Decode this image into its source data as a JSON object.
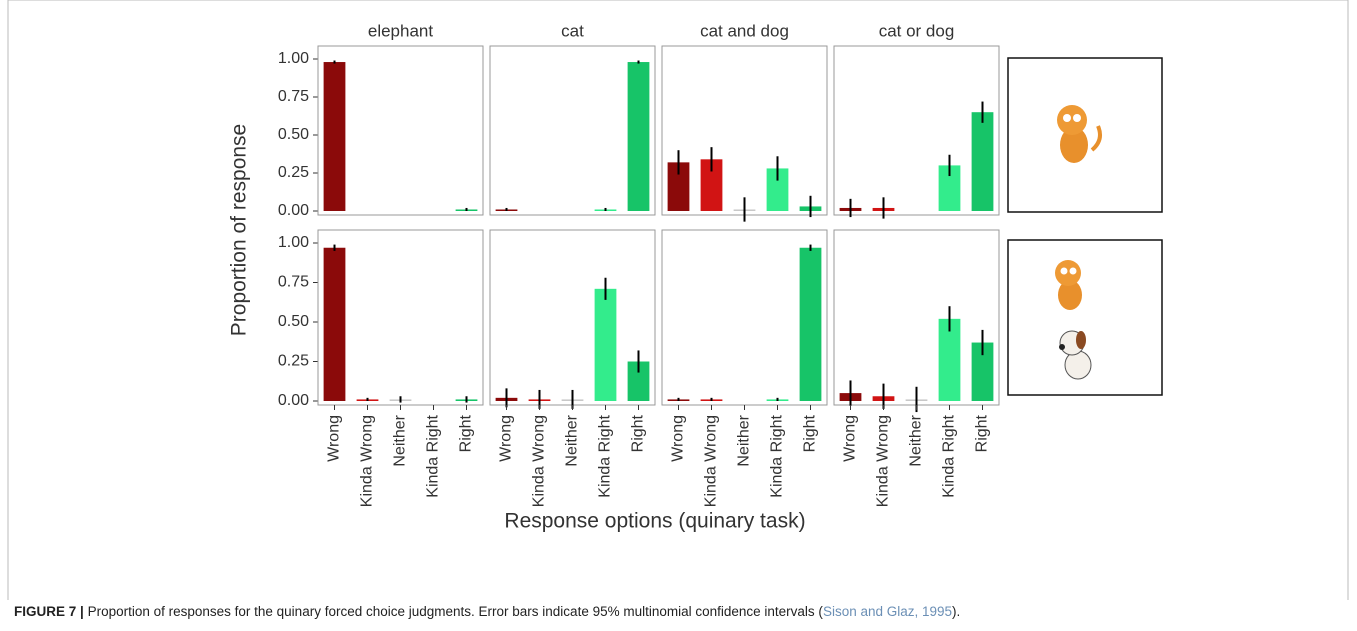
{
  "chart_data": {
    "type": "bar",
    "facets": [
      "elephant",
      "cat",
      "cat and dog",
      "cat or dog"
    ],
    "categories": [
      "Wrong",
      "Kinda Wrong",
      "Neither",
      "Kinda Right",
      "Right"
    ],
    "colors": [
      "#8b0a0a",
      "#d11414",
      "#c8c8c8",
      "#33ec8c",
      "#17c468"
    ],
    "ylim": [
      0,
      1
    ],
    "yticks": [
      {
        "value": 0,
        "label": "0.00"
      },
      {
        "value": 0.25,
        "label": "0.25"
      },
      {
        "value": 0.5,
        "label": "0.50"
      },
      {
        "value": 0.75,
        "label": "0.75"
      },
      {
        "value": 1,
        "label": "1.00"
      }
    ],
    "y_label": "Proportion of response",
    "x_label": "Response options (quinary task)",
    "rows": [
      {
        "panels": [
          {
            "values": [
              0.98,
              0,
              0,
              0,
              0.01
            ],
            "errors": [
              0.01,
              0,
              0,
              0,
              0.01
            ]
          },
          {
            "values": [
              0.01,
              0,
              0,
              0.01,
              0.98
            ],
            "errors": [
              0.01,
              0,
              0,
              0.01,
              0.01
            ]
          },
          {
            "values": [
              0.32,
              0.34,
              0.01,
              0.28,
              0.03
            ],
            "errors": [
              0.08,
              0.08,
              0.08,
              0.08,
              0.07
            ]
          },
          {
            "values": [
              0.02,
              0.02,
              0,
              0.3,
              0.65
            ],
            "errors": [
              0.06,
              0.07,
              0,
              0.07,
              0.07
            ]
          }
        ]
      },
      {
        "panels": [
          {
            "values": [
              0.97,
              0.01,
              0.01,
              0,
              0.01
            ],
            "errors": [
              0.02,
              0.01,
              0.02,
              0,
              0.02
            ]
          },
          {
            "values": [
              0.02,
              0.01,
              0.01,
              0.71,
              0.25
            ],
            "errors": [
              0.06,
              0.06,
              0.06,
              0.07,
              0.07
            ]
          },
          {
            "values": [
              0.01,
              0.01,
              0,
              0.01,
              0.97
            ],
            "errors": [
              0.01,
              0.01,
              0,
              0.01,
              0.02
            ]
          },
          {
            "values": [
              0.05,
              0.03,
              0.01,
              0.52,
              0.37
            ],
            "errors": [
              0.08,
              0.08,
              0.08,
              0.08,
              0.08
            ]
          }
        ]
      }
    ]
  },
  "caption": {
    "label": "FIGURE 7 |",
    "text": "Proportion of responses for the quinary forced choice judgments. Error bars indicate 95% multinomial confidence intervals (",
    "citation": "Sison and Glaz, 1995",
    "end": ")."
  }
}
